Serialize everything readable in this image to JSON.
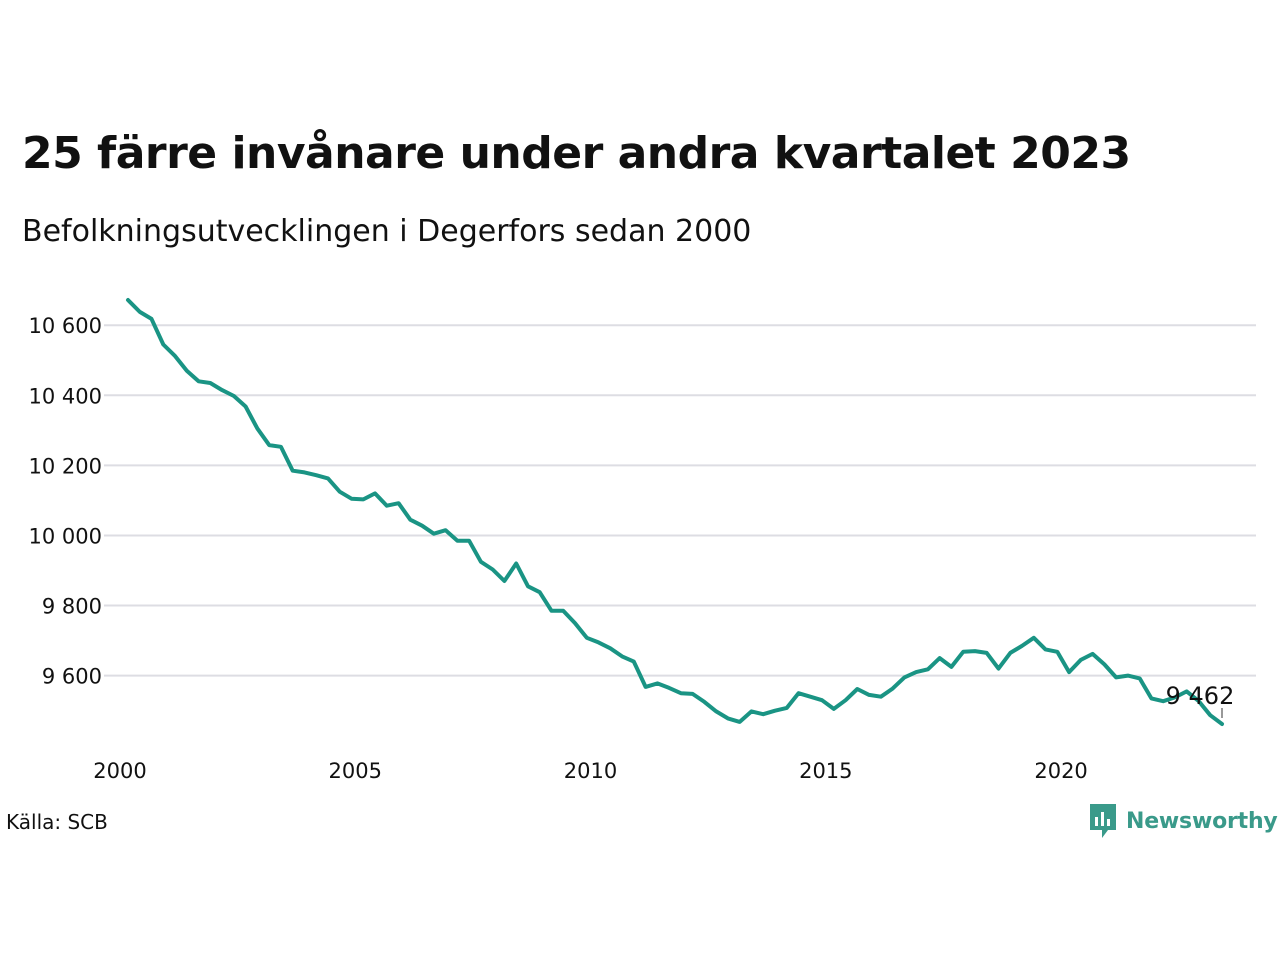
{
  "header": {
    "title": "25 färre invånare under andra kvartalet 2023",
    "subtitle": "Befolkningsutvecklingen i Degerfors sedan 2000"
  },
  "footer": {
    "source": "Källa: SCB",
    "brand": "Newsworthy"
  },
  "colors": {
    "line": "#1a9484",
    "grid": "#dddde3",
    "brand": "#3a9a8a"
  },
  "chart_data": {
    "type": "line",
    "title": "25 färre invånare under andra kvartalet 2023",
    "subtitle": "Befolkningsutvecklingen i Degerfors sedan 2000",
    "xlabel": "",
    "ylabel": "",
    "x_ticks": [
      2000,
      2005,
      2010,
      2015,
      2020
    ],
    "y_ticks": [
      9600,
      9800,
      10000,
      10200,
      10400,
      10600
    ],
    "y_tick_labels": [
      "9 600",
      "9 800",
      "10 000",
      "10 200",
      "10 400",
      "10 600"
    ],
    "xlim": [
      2000,
      2023.5
    ],
    "ylim": [
      9440,
      10680
    ],
    "grid": true,
    "end_label": "9 462",
    "series": [
      {
        "x": [
          2000.0,
          2000.25,
          2000.5,
          2000.75,
          2001.0,
          2001.25,
          2001.5,
          2001.75,
          2002.0,
          2002.25,
          2002.5,
          2002.75,
          2003.0,
          2003.25,
          2003.5,
          2003.75,
          2004.0,
          2004.25,
          2004.5,
          2004.75,
          2005.0,
          2005.25,
          2005.5,
          2005.75,
          2006.0,
          2006.25,
          2006.5,
          2006.75,
          2007.0,
          2007.25,
          2007.5,
          2007.75,
          2008.0,
          2008.25,
          2008.5,
          2008.75,
          2009.0,
          2009.25,
          2009.5,
          2009.75,
          2010.0,
          2010.25,
          2010.5,
          2010.75,
          2011.0,
          2011.25,
          2011.5,
          2011.75,
          2012.0,
          2012.25,
          2012.5,
          2012.75,
          2013.0,
          2013.25,
          2013.5,
          2013.75,
          2014.0,
          2014.25,
          2014.5,
          2014.75,
          2015.0,
          2015.25,
          2015.5,
          2015.75,
          2016.0,
          2016.25,
          2016.5,
          2016.75,
          2017.0,
          2017.25,
          2017.5,
          2017.75,
          2018.0,
          2018.25,
          2018.5,
          2018.75,
          2019.0,
          2019.25,
          2019.5,
          2019.75,
          2020.0,
          2020.25,
          2020.5,
          2020.75,
          2021.0,
          2021.25,
          2021.5,
          2021.75,
          2022.0,
          2022.25,
          2022.5,
          2022.75,
          2023.0,
          2023.25
        ],
        "y": [
          10672,
          10638,
          10618,
          10545,
          10512,
          10470,
          10440,
          10435,
          10415,
          10398,
          10368,
          10305,
          10258,
          10253,
          10185,
          10180,
          10172,
          10163,
          10125,
          10105,
          10103,
          10120,
          10085,
          10092,
          10045,
          10028,
          10005,
          10015,
          9985,
          9985,
          9925,
          9903,
          9870,
          9920,
          9855,
          9838,
          9785,
          9785,
          9750,
          9708,
          9695,
          9678,
          9655,
          9640,
          9568,
          9578,
          9565,
          9550,
          9548,
          9525,
          9498,
          9478,
          9468,
          9498,
          9490,
          9500,
          9508,
          9550,
          9540,
          9530,
          9505,
          9530,
          9562,
          9545,
          9540,
          9563,
          9595,
          9610,
          9618,
          9650,
          9625,
          9668,
          9670,
          9665,
          9620,
          9665,
          9685,
          9708,
          9675,
          9668,
          9610,
          9645,
          9662,
          9632,
          9595,
          9600,
          9592,
          9535,
          9527,
          9538,
          9555,
          9528,
          9487,
          9462
        ]
      }
    ]
  }
}
